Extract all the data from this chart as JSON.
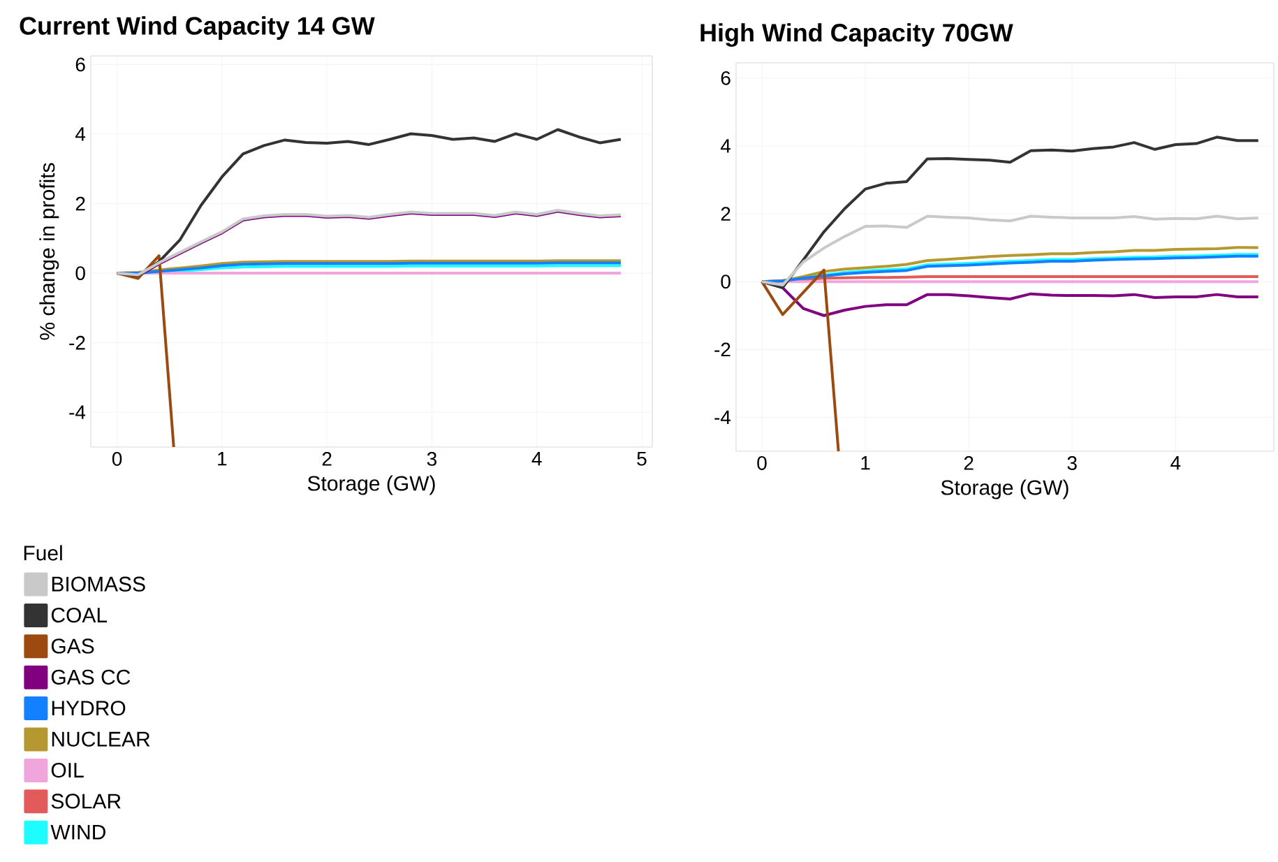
{
  "chart_data": [
    {
      "type": "line",
      "title": "Current Wind Capacity 14 GW",
      "xlabel": "Storage (GW)",
      "ylabel": "% change in profits",
      "grid": true,
      "line_style": "solid",
      "x": [
        0,
        0.2,
        0.4,
        0.6,
        0.8,
        1.0,
        1.2,
        1.4,
        1.6,
        1.8,
        2.0,
        2.2,
        2.4,
        2.6,
        2.8,
        3.0,
        3.2,
        3.4,
        3.6,
        3.8,
        4.0,
        4.2,
        4.4,
        4.6,
        4.8
      ],
      "xlim": [
        -0.25,
        5.1
      ],
      "xticks": [
        0,
        1,
        2,
        3,
        4,
        5
      ],
      "ylim": [
        -5,
        6.25
      ],
      "yticks": [
        -4,
        -2,
        0,
        2,
        4,
        6
      ],
      "series": [
        {
          "color": "#c9c9c9",
          "values": [
            0,
            -0.05,
            0.3,
            0.6,
            0.9,
            1.19,
            1.56,
            1.65,
            1.69,
            1.69,
            1.64,
            1.66,
            1.61,
            1.69,
            1.76,
            1.72,
            1.72,
            1.72,
            1.66,
            1.76,
            1.69,
            1.81,
            1.72,
            1.65,
            1.68
          ]
        },
        {
          "color": "#333333",
          "values": [
            0,
            -0.07,
            0.33,
            0.96,
            1.95,
            2.77,
            3.43,
            3.67,
            3.83,
            3.76,
            3.74,
            3.79,
            3.7,
            3.85,
            4.01,
            3.96,
            3.85,
            3.89,
            3.79,
            4.01,
            3.85,
            4.13,
            3.92,
            3.75,
            3.85
          ]
        },
        {
          "color": "#9c4a0f",
          "x": [
            0,
            0.2,
            0.4,
            0.54
          ],
          "values": [
            0,
            -0.15,
            0.5,
            -5
          ]
        },
        {
          "color": "#800080",
          "values": [
            0,
            -0.08,
            0.27,
            0.57,
            0.87,
            1.16,
            1.53,
            1.62,
            1.66,
            1.66,
            1.61,
            1.63,
            1.58,
            1.66,
            1.73,
            1.69,
            1.69,
            1.69,
            1.63,
            1.73,
            1.66,
            1.78,
            1.69,
            1.62,
            1.65
          ]
        },
        {
          "color": "#1380ff",
          "values": [
            0,
            0,
            0.05,
            0.1,
            0.15,
            0.22,
            0.26,
            0.27,
            0.28,
            0.28,
            0.28,
            0.28,
            0.28,
            0.28,
            0.29,
            0.29,
            0.29,
            0.29,
            0.29,
            0.29,
            0.29,
            0.3,
            0.3,
            0.3,
            0.3
          ]
        },
        {
          "color": "#b5982f",
          "values": [
            0,
            0.02,
            0.09,
            0.15,
            0.21,
            0.28,
            0.32,
            0.33,
            0.34,
            0.34,
            0.34,
            0.34,
            0.34,
            0.34,
            0.35,
            0.35,
            0.35,
            0.35,
            0.35,
            0.35,
            0.35,
            0.36,
            0.36,
            0.36,
            0.36
          ]
        },
        {
          "color": "#f0a6dc",
          "values": [
            0,
            0,
            0,
            0,
            0,
            0,
            0,
            0,
            0,
            0,
            0,
            0,
            0,
            0,
            0,
            0,
            0,
            0,
            0,
            0,
            0,
            0,
            0,
            0,
            0
          ]
        },
        {
          "color": "#1ffcff",
          "values": [
            0,
            -0.02,
            0.02,
            0.06,
            0.1,
            0.15,
            0.18,
            0.19,
            0.2,
            0.2,
            0.2,
            0.2,
            0.2,
            0.2,
            0.21,
            0.21,
            0.21,
            0.21,
            0.21,
            0.21,
            0.21,
            0.22,
            0.22,
            0.22,
            0.22
          ]
        }
      ]
    },
    {
      "type": "line",
      "title": "High Wind Capacity 70GW",
      "xlabel": "Storage (GW)",
      "legend_title": "Fuel",
      "legend": "bottom left",
      "grid": true,
      "line_style": "solid",
      "x": [
        0,
        0.2,
        0.4,
        0.6,
        0.8,
        1.0,
        1.2,
        1.4,
        1.6,
        1.8,
        2.0,
        2.2,
        2.4,
        2.6,
        2.8,
        3.0,
        3.2,
        3.4,
        3.6,
        3.8,
        4.0,
        4.2,
        4.4,
        4.6,
        4.8
      ],
      "xlim": [
        -0.25,
        4.95
      ],
      "xticks": [
        0,
        1,
        2,
        3,
        4
      ],
      "ylim": [
        -5,
        6.45
      ],
      "yticks": [
        -4,
        -2,
        0,
        2,
        4,
        6
      ],
      "series": [
        {
          "name": "BIOMASS",
          "color": "#c9c9c9",
          "values": [
            0,
            -0.1,
            0.58,
            0.99,
            1.33,
            1.63,
            1.64,
            1.6,
            1.93,
            1.9,
            1.88,
            1.82,
            1.79,
            1.93,
            1.9,
            1.88,
            1.88,
            1.88,
            1.92,
            1.84,
            1.86,
            1.85,
            1.93,
            1.85,
            1.88
          ]
        },
        {
          "name": "COAL",
          "color": "#333333",
          "values": [
            0,
            -0.18,
            0.64,
            1.47,
            2.15,
            2.73,
            2.9,
            2.95,
            3.62,
            3.63,
            3.6,
            3.58,
            3.52,
            3.86,
            3.88,
            3.85,
            3.92,
            3.97,
            4.1,
            3.9,
            4.04,
            4.07,
            4.26,
            4.16,
            4.16
          ]
        },
        {
          "name": "GAS",
          "color": "#9c4a0f",
          "x": [
            0,
            0.2,
            0.4,
            0.6,
            0.74
          ],
          "values": [
            0,
            -0.97,
            -0.32,
            0.34,
            -5
          ]
        },
        {
          "name": "GAS CC",
          "color": "#800080",
          "values": [
            0,
            -0.18,
            -0.79,
            -1.0,
            -0.84,
            -0.73,
            -0.68,
            -0.68,
            -0.38,
            -0.38,
            -0.42,
            -0.47,
            -0.51,
            -0.36,
            -0.4,
            -0.41,
            -0.41,
            -0.42,
            -0.38,
            -0.47,
            -0.45,
            -0.45,
            -0.38,
            -0.45,
            -0.45
          ]
        },
        {
          "name": "HYDRO",
          "color": "#1380ff",
          "values": [
            0,
            0.02,
            0.1,
            0.17,
            0.23,
            0.27,
            0.3,
            0.33,
            0.45,
            0.47,
            0.49,
            0.52,
            0.55,
            0.57,
            0.6,
            0.6,
            0.63,
            0.65,
            0.67,
            0.68,
            0.7,
            0.71,
            0.73,
            0.75,
            0.75
          ]
        },
        {
          "name": "NUCLEAR",
          "color": "#b5982f",
          "values": [
            0,
            0.02,
            0.15,
            0.3,
            0.37,
            0.41,
            0.45,
            0.51,
            0.62,
            0.66,
            0.7,
            0.74,
            0.77,
            0.79,
            0.82,
            0.82,
            0.86,
            0.88,
            0.92,
            0.92,
            0.95,
            0.96,
            0.97,
            1.01,
            1.0
          ]
        },
        {
          "name": "OIL",
          "color": "#f0a6dc",
          "values": [
            0,
            0,
            0,
            0,
            0,
            0,
            0,
            0,
            0,
            0,
            0,
            0,
            0,
            0,
            0,
            0,
            0,
            0,
            0,
            0,
            0,
            0,
            0,
            0,
            0
          ]
        },
        {
          "name": "SOLAR",
          "color": "#e35a5a",
          "values": [
            0,
            0.03,
            0.06,
            0.1,
            0.11,
            0.12,
            0.12,
            0.13,
            0.15,
            0.15,
            0.15,
            0.15,
            0.15,
            0.15,
            0.15,
            0.15,
            0.15,
            0.15,
            0.15,
            0.15,
            0.15,
            0.15,
            0.15,
            0.15,
            0.15
          ]
        },
        {
          "name": "WIND",
          "color": "#1ffcff",
          "values": [
            0,
            0.02,
            0.12,
            0.2,
            0.27,
            0.32,
            0.35,
            0.38,
            0.5,
            0.52,
            0.54,
            0.57,
            0.6,
            0.62,
            0.65,
            0.65,
            0.68,
            0.7,
            0.72,
            0.73,
            0.75,
            0.76,
            0.78,
            0.8,
            0.8
          ]
        }
      ]
    }
  ]
}
